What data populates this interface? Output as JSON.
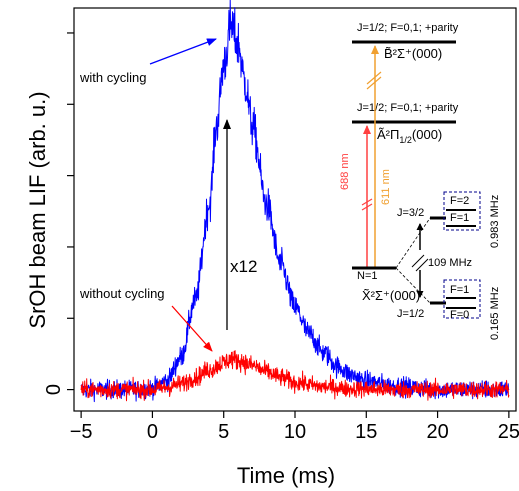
{
  "chart_data": {
    "type": "line",
    "title": "",
    "xlabel": "Time (ms)",
    "ylabel": "SrOH beam LIF (arb. u.)",
    "xlim": [
      -5.5,
      25.5
    ],
    "ylim": [
      -0.3,
      5.35
    ],
    "x_ticks": [
      -5,
      0,
      5,
      10,
      15,
      20,
      25
    ],
    "x_tick_labels": [
      "−5",
      "0",
      "5",
      "10",
      "15",
      "20",
      "25"
    ],
    "y_ticks": [
      0,
      1,
      2,
      3,
      4,
      5
    ],
    "y_tick_labels": [
      "0"
    ],
    "grid": false,
    "series": [
      {
        "name": "with cycling",
        "color": "#0000ff",
        "x": [
          -5,
          -3,
          -1,
          0,
          1,
          2,
          3,
          4,
          4.5,
          5,
          5.5,
          6,
          6.5,
          7,
          8,
          9,
          10,
          11,
          12,
          13,
          14,
          15,
          17,
          20,
          25
        ],
        "y": [
          0,
          0,
          0,
          0.02,
          0.12,
          0.45,
          1.25,
          2.6,
          3.7,
          4.55,
          5.1,
          4.85,
          4.3,
          3.7,
          2.6,
          1.75,
          1.15,
          0.78,
          0.52,
          0.32,
          0.2,
          0.12,
          0.05,
          0,
          0
        ],
        "noise": 0.13
      },
      {
        "name": "without cycling",
        "color": "#ff0000",
        "x": [
          -5,
          -2,
          0,
          1,
          2,
          3,
          4,
          5,
          5.5,
          6,
          7,
          8,
          9,
          10,
          12,
          14,
          17,
          20,
          25
        ],
        "y": [
          0,
          0,
          0,
          0.03,
          0.08,
          0.17,
          0.28,
          0.38,
          0.43,
          0.41,
          0.34,
          0.25,
          0.17,
          0.1,
          0.04,
          0.01,
          0,
          0,
          0
        ],
        "noise": 0.12
      }
    ],
    "annotations": {
      "with_cycling": "with cycling",
      "without_cycling": "without cycling",
      "ratio": "x12"
    },
    "level_diagram": {
      "b_state_label": "J=1/2; F=0,1; +parity",
      "b_state_term": "B̃²Σ⁺(000)",
      "a_state_label": "J=1/2; F=0,1; +parity",
      "a_state_term": "Ã²Π",
      "a_state_sub": "1/2",
      "a_state_tail": "(000)",
      "x_state_term": "X̃²Σ⁺(000)",
      "n1_label": "N=1",
      "j32_label": "J=3/2",
      "j12_label": "J=1/2",
      "f2_label": "F=2",
      "f1_upper_label": "F=1",
      "f1_lower_label": "F=1",
      "f0_label": "F=0",
      "laser_688": "688 nm",
      "laser_611": "611 nm",
      "spin_rotation": "109 MHz",
      "hf_upper": "0.983 MHz",
      "hf_lower": "0.165 MHz",
      "color_688": "#ff4040",
      "color_611": "#f0a030",
      "box_color": "#00008b"
    }
  }
}
